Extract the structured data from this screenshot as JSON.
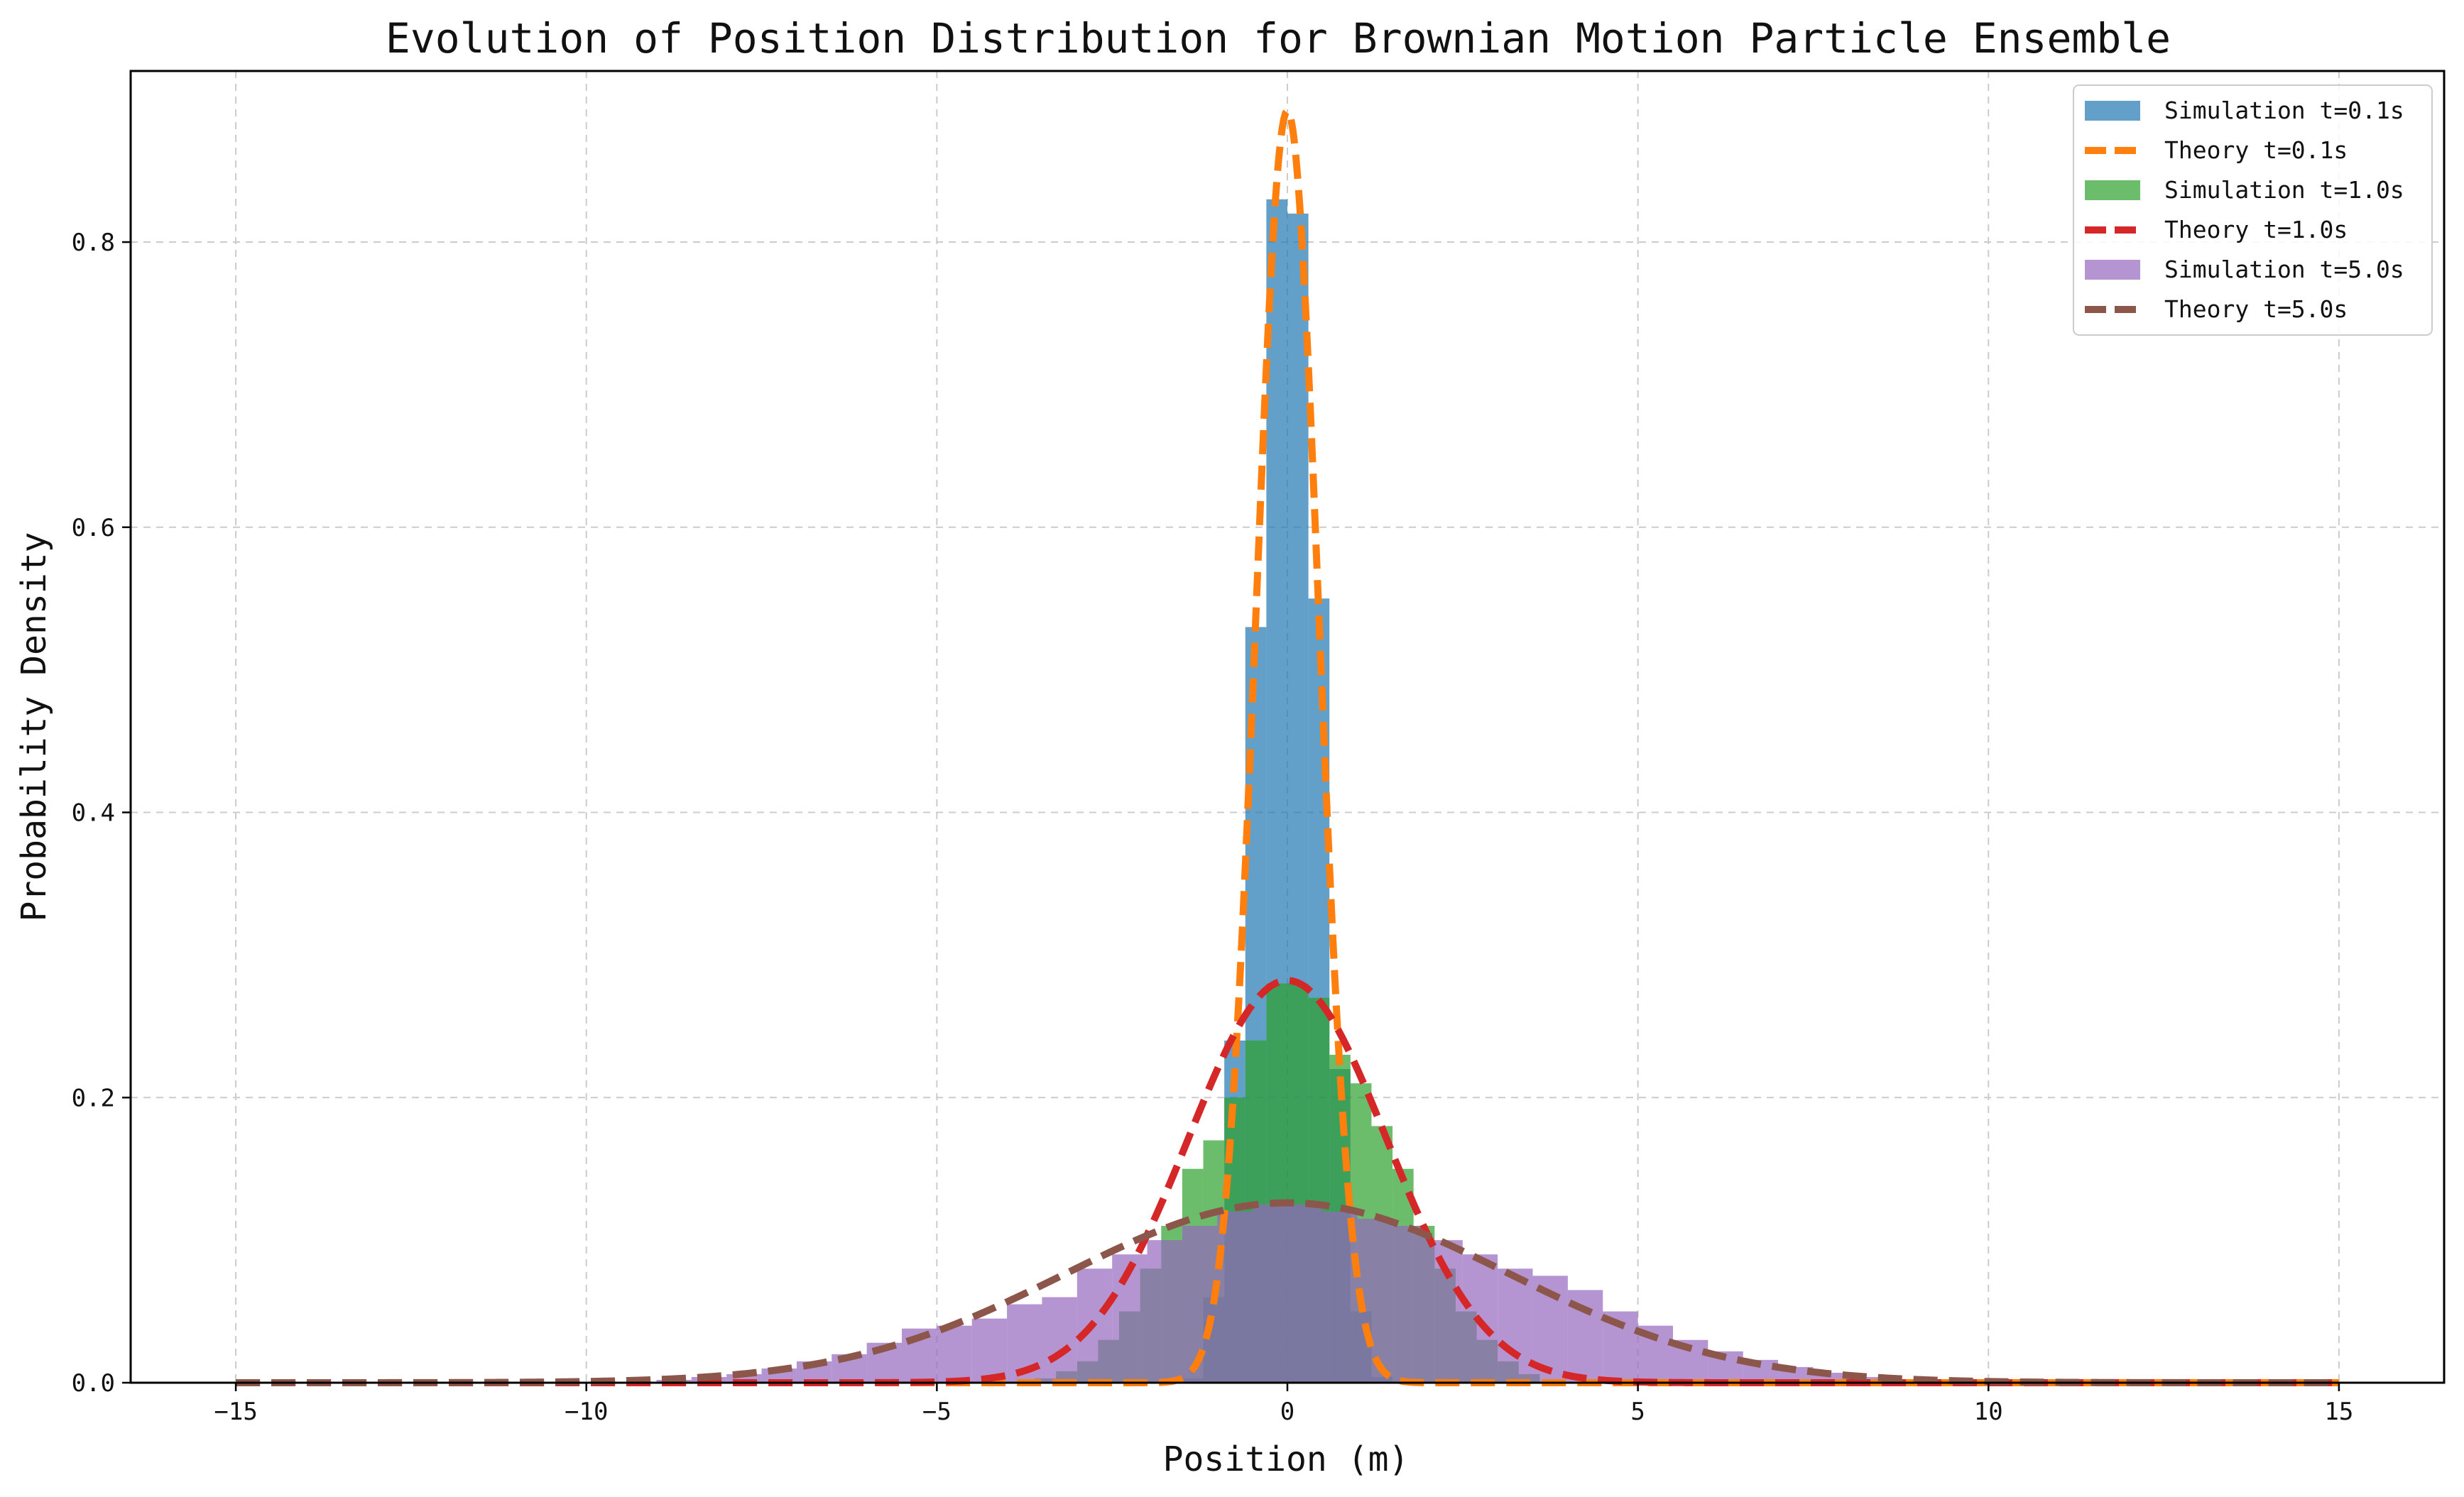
{
  "chart_data": {
    "type": "bar",
    "title": "Evolution of Position Distribution for Brownian Motion Particle Ensemble",
    "xlabel": "Position (m)",
    "ylabel": "Probability Density",
    "xlim": [
      -16.5,
      16.5
    ],
    "ylim": [
      0,
      0.92
    ],
    "xticks": [
      -15,
      -10,
      -5,
      0,
      5,
      10,
      15
    ],
    "yticks": [
      0.0,
      0.2,
      0.4,
      0.6,
      0.8
    ],
    "xtick_labels": [
      "−15",
      "−10",
      "−5",
      "0",
      "5",
      "10",
      "15"
    ],
    "ytick_labels": [
      "0.0",
      "0.2",
      "0.4",
      "0.6",
      "0.8"
    ],
    "grid": true,
    "legend_position": "top-right",
    "colors": {
      "sim_0_1": "#1f77b4",
      "theory_0_1": "#ff7f0e",
      "sim_1_0": "#2ca02c",
      "theory_1_0": "#d62728",
      "sim_5_0": "#9467bd",
      "theory_5_0": "#8c564b"
    },
    "histograms": [
      {
        "name": "Simulation t=0.1s",
        "color": "#1f77b4",
        "opacity": 0.7,
        "bin_edges": [
          -1.5,
          -1.2,
          -0.9,
          -0.6,
          -0.3,
          0.0,
          0.3,
          0.6,
          0.9,
          1.2,
          1.5
        ],
        "values": [
          0.003,
          0.06,
          0.24,
          0.53,
          0.83,
          0.82,
          0.55,
          0.22,
          0.05,
          0.004
        ]
      },
      {
        "name": "Simulation t=1.0s",
        "color": "#2ca02c",
        "opacity": 0.7,
        "bin_edges": [
          -3.6,
          -3.3,
          -3.0,
          -2.7,
          -2.4,
          -2.1,
          -1.8,
          -1.5,
          -1.2,
          -0.9,
          -0.6,
          -0.3,
          0.0,
          0.3,
          0.6,
          0.9,
          1.2,
          1.5,
          1.8,
          2.1,
          2.4,
          2.7,
          3.0,
          3.3,
          3.6
        ],
        "values": [
          0.003,
          0.008,
          0.015,
          0.03,
          0.05,
          0.08,
          0.11,
          0.15,
          0.17,
          0.2,
          0.24,
          0.28,
          0.28,
          0.27,
          0.23,
          0.21,
          0.18,
          0.15,
          0.11,
          0.08,
          0.05,
          0.03,
          0.015,
          0.006
        ]
      },
      {
        "name": "Simulation t=5.0s",
        "color": "#9467bd",
        "opacity": 0.7,
        "bin_edges": [
          -9.0,
          -8.5,
          -8.0,
          -7.5,
          -7.0,
          -6.5,
          -6.0,
          -5.5,
          -5.0,
          -4.5,
          -4.0,
          -3.5,
          -3.0,
          -2.5,
          -2.0,
          -1.5,
          -1.0,
          -0.5,
          0.0,
          0.5,
          1.0,
          1.5,
          2.0,
          2.5,
          3.0,
          3.5,
          4.0,
          4.5,
          5.0,
          5.5,
          6.0,
          6.5,
          7.0,
          7.5,
          8.0,
          8.5,
          9.0
        ],
        "values": [
          0.002,
          0.004,
          0.006,
          0.01,
          0.015,
          0.02,
          0.028,
          0.038,
          0.04,
          0.045,
          0.055,
          0.06,
          0.08,
          0.09,
          0.1,
          0.11,
          0.12,
          0.125,
          0.125,
          0.12,
          0.115,
          0.11,
          0.1,
          0.09,
          0.08,
          0.075,
          0.065,
          0.05,
          0.04,
          0.03,
          0.022,
          0.016,
          0.011,
          0.007,
          0.004,
          0.002
        ]
      }
    ],
    "series": [
      {
        "name": "Theory t=0.1s",
        "color": "#ff7f0e",
        "style": "dashed",
        "mean": 0,
        "sigma": 0.4472
      },
      {
        "name": "Theory t=1.0s",
        "color": "#d62728",
        "style": "dashed",
        "mean": 0,
        "sigma": 1.4142
      },
      {
        "name": "Theory t=5.0s",
        "color": "#8c564b",
        "style": "dashed",
        "mean": 0,
        "sigma": 3.1623
      }
    ],
    "theory_x_range": [
      -15,
      15
    ],
    "legend": [
      {
        "label": "Simulation t=0.1s",
        "kind": "patch",
        "color": "#1f77b4"
      },
      {
        "label": "Theory t=0.1s",
        "kind": "line",
        "color": "#ff7f0e"
      },
      {
        "label": "Simulation t=1.0s",
        "kind": "patch",
        "color": "#2ca02c"
      },
      {
        "label": "Theory t=1.0s",
        "kind": "line",
        "color": "#d62728"
      },
      {
        "label": "Simulation t=5.0s",
        "kind": "patch",
        "color": "#9467bd"
      },
      {
        "label": "Theory t=5.0s",
        "kind": "line",
        "color": "#8c564b"
      }
    ]
  }
}
